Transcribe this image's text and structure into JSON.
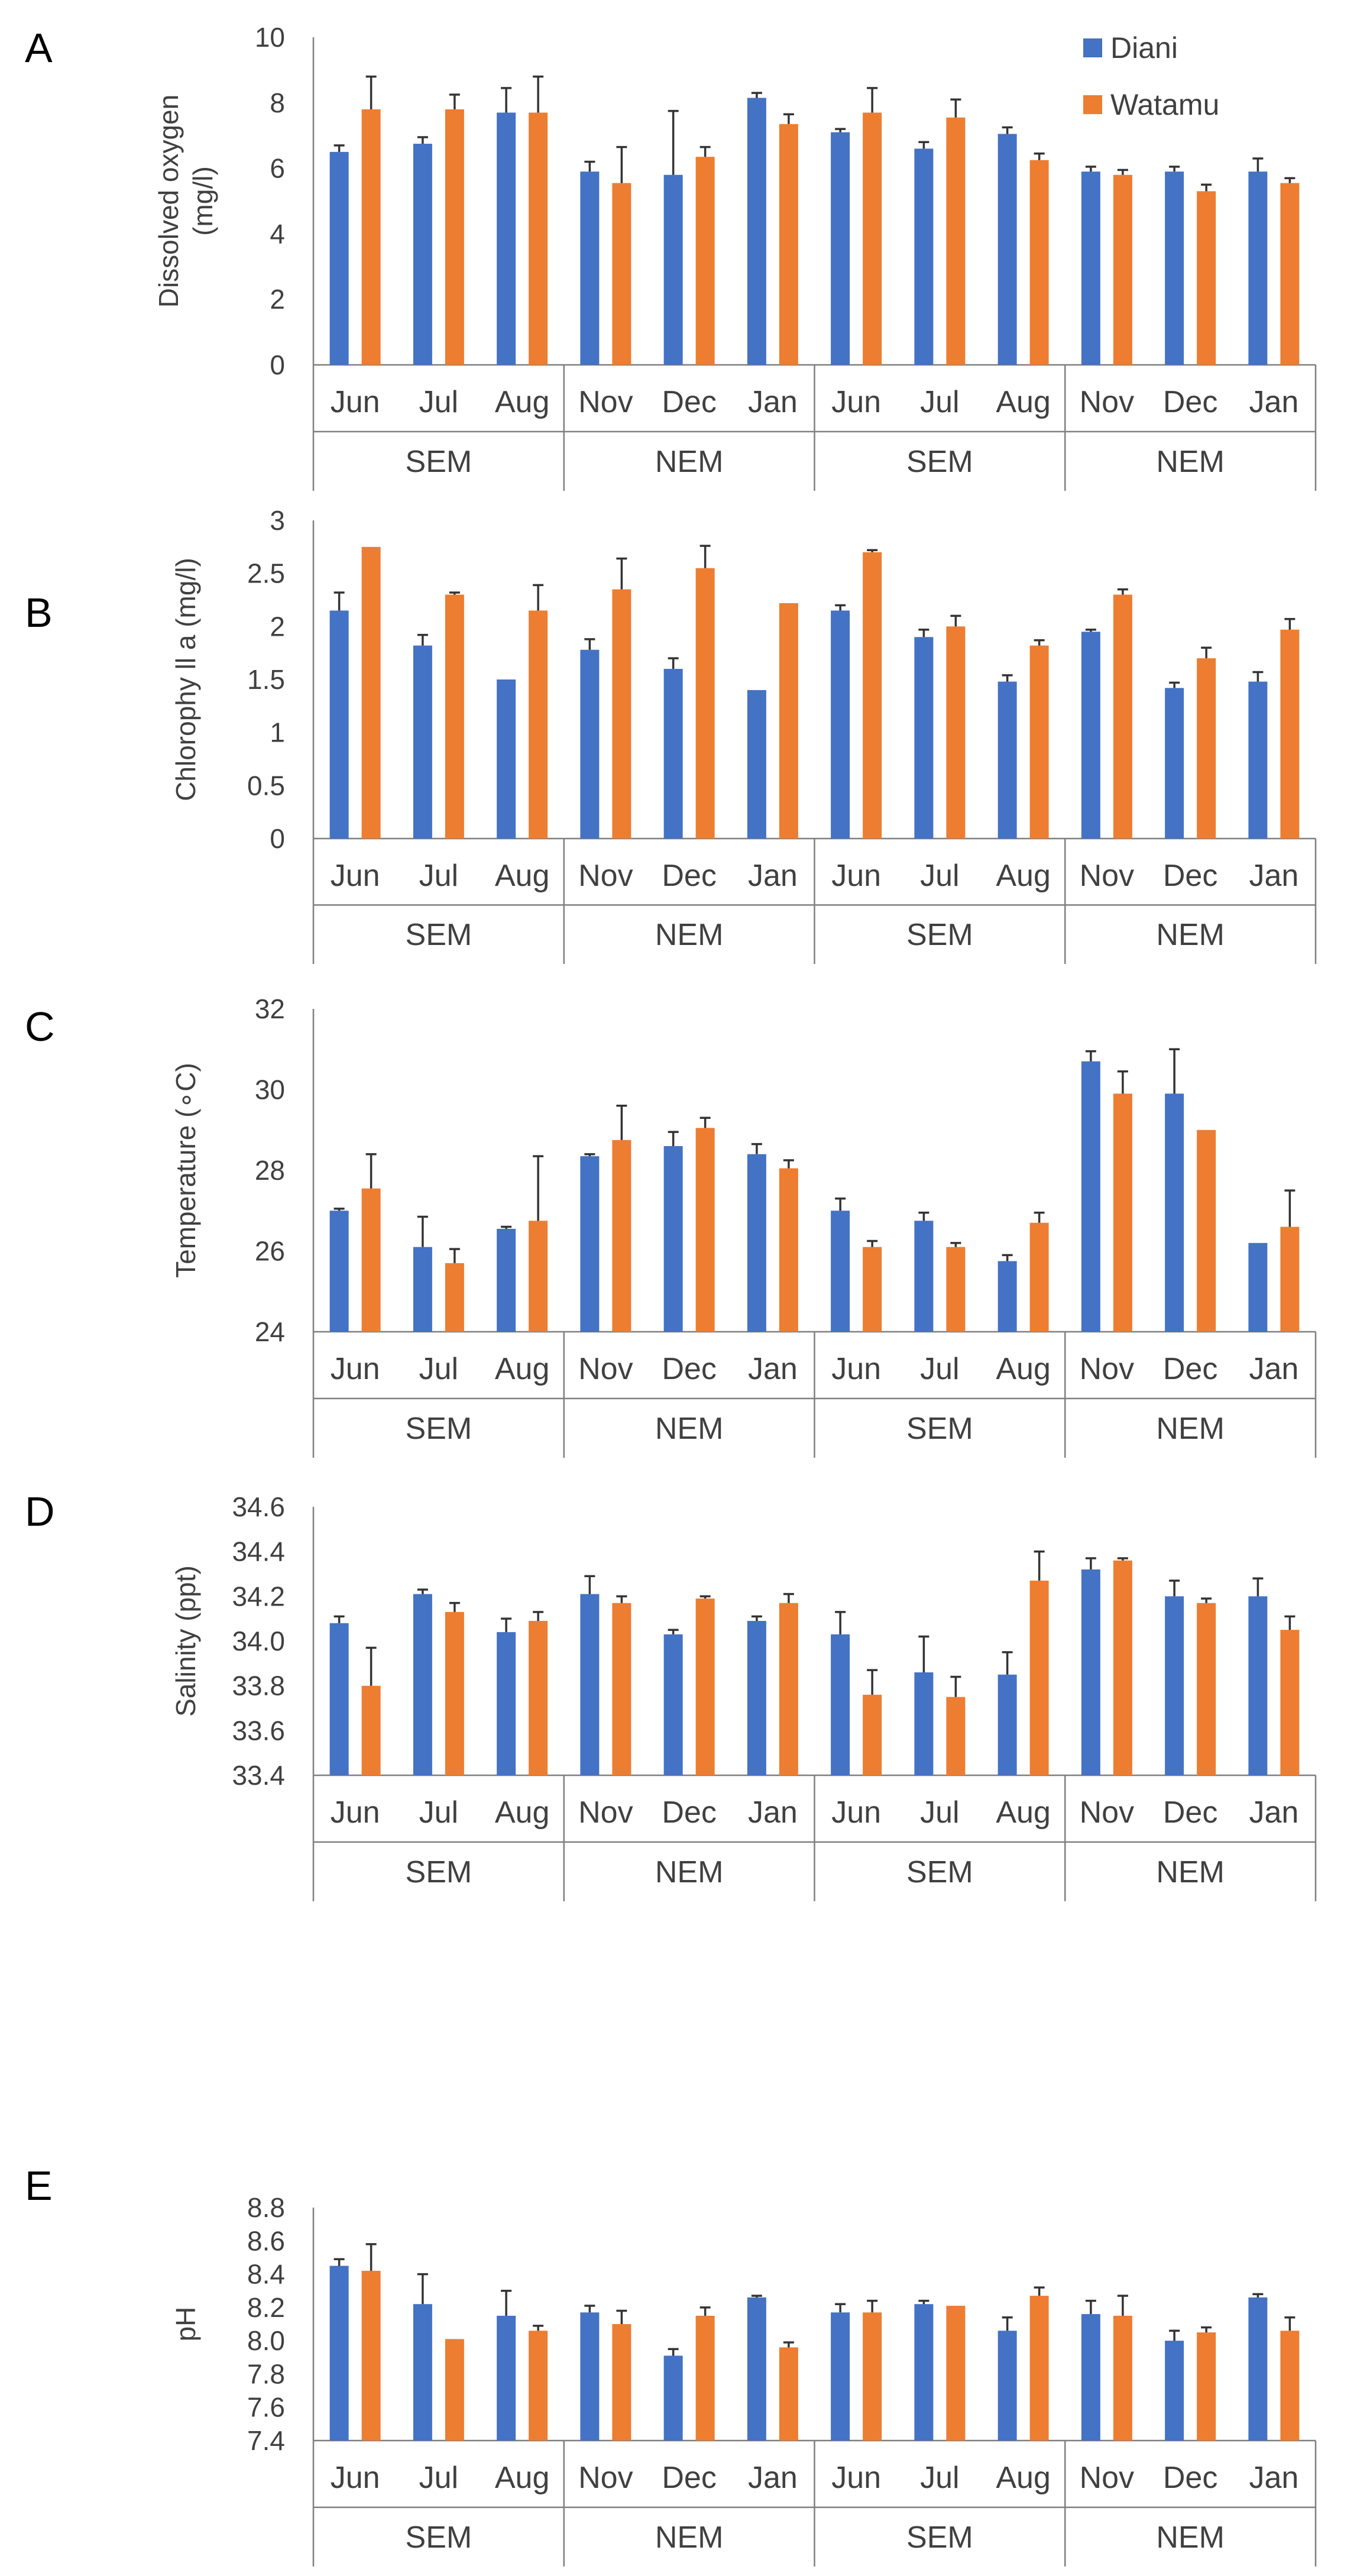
{
  "legend": [
    {
      "label": "Diani",
      "color": "#4472C4"
    },
    {
      "label": "Watamu",
      "color": "#ED7D31"
    }
  ],
  "chart_data": [
    {
      "panel": "A",
      "type": "bar",
      "ylabel_lines": [
        "Dissolved oxygen",
        "(mg/l)"
      ],
      "ylim": [
        0,
        10
      ],
      "yticks": [
        0,
        2,
        4,
        6,
        8,
        10
      ],
      "tick_decimals": 0,
      "categories": [
        "Jun",
        "Jul",
        "Aug",
        "Nov",
        "Dec",
        "Jan",
        "Jun",
        "Jul",
        "Aug",
        "Nov",
        "Dec",
        "Jan"
      ],
      "groups": [
        "SEM",
        "NEM",
        "SEM",
        "NEM"
      ],
      "series": [
        {
          "name": "Diani",
          "values": [
            6.5,
            6.75,
            7.7,
            5.9,
            5.8,
            8.15,
            7.1,
            6.6,
            7.05,
            5.9,
            5.9,
            5.9
          ],
          "errors": [
            0.2,
            0.2,
            0.75,
            0.3,
            1.95,
            0.15,
            0.1,
            0.2,
            0.2,
            0.15,
            0.15,
            0.4
          ]
        },
        {
          "name": "Watamu",
          "values": [
            7.8,
            7.8,
            7.7,
            5.55,
            6.35,
            7.35,
            7.7,
            7.55,
            6.25,
            5.8,
            5.3,
            5.55
          ],
          "errors": [
            1.0,
            0.45,
            1.1,
            1.1,
            0.3,
            0.3,
            0.75,
            0.55,
            0.2,
            0.15,
            0.2,
            0.15
          ]
        }
      ]
    },
    {
      "panel": "B",
      "type": "bar",
      "ylabel_lines": [
        "Chlorophy ll a (mg/l)"
      ],
      "ylim": [
        0,
        3
      ],
      "yticks": [
        0,
        0.5,
        1,
        1.5,
        2,
        2.5,
        3
      ],
      "tick_decimals": -1,
      "categories": [
        "Jun",
        "Jul",
        "Aug",
        "Nov",
        "Dec",
        "Jan",
        "Jun",
        "Jul",
        "Aug",
        "Nov",
        "Dec",
        "Jan"
      ],
      "groups": [
        "SEM",
        "NEM",
        "SEM",
        "NEM"
      ],
      "series": [
        {
          "name": "Diani",
          "values": [
            2.15,
            1.82,
            1.5,
            1.78,
            1.6,
            1.4,
            2.15,
            1.9,
            1.48,
            1.95,
            1.42,
            1.48
          ],
          "errors": [
            0.17,
            0.1,
            0.0,
            0.1,
            0.1,
            0.0,
            0.05,
            0.07,
            0.06,
            0.02,
            0.05,
            0.09
          ]
        },
        {
          "name": "Watamu",
          "values": [
            2.75,
            2.3,
            2.15,
            2.35,
            2.55,
            2.22,
            2.7,
            2.0,
            1.82,
            2.3,
            1.7,
            1.97
          ],
          "errors": [
            0.0,
            0.02,
            0.24,
            0.29,
            0.21,
            0.0,
            0.02,
            0.1,
            0.05,
            0.05,
            0.1,
            0.1
          ]
        }
      ]
    },
    {
      "panel": "C",
      "type": "bar",
      "ylabel_lines": [
        "Temperature (∘C)"
      ],
      "ylim": [
        24,
        32
      ],
      "yticks": [
        24,
        26,
        28,
        30,
        32
      ],
      "tick_decimals": 0,
      "categories": [
        "Jun",
        "Jul",
        "Aug",
        "Nov",
        "Dec",
        "Jan",
        "Jun",
        "Jul",
        "Aug",
        "Nov",
        "Dec",
        "Jan"
      ],
      "groups": [
        "SEM",
        "NEM",
        "SEM",
        "NEM"
      ],
      "series": [
        {
          "name": "Diani",
          "values": [
            27.0,
            26.1,
            26.55,
            28.35,
            28.6,
            28.4,
            27.0,
            26.75,
            25.75,
            30.7,
            29.9,
            26.2
          ],
          "errors": [
            0.05,
            0.75,
            0.05,
            0.05,
            0.35,
            0.25,
            0.3,
            0.2,
            0.15,
            0.25,
            1.1,
            0.0
          ]
        },
        {
          "name": "Watamu",
          "values": [
            27.55,
            25.7,
            26.75,
            28.75,
            29.05,
            28.05,
            26.1,
            26.1,
            26.7,
            29.9,
            29.0,
            26.6
          ],
          "errors": [
            0.85,
            0.35,
            1.6,
            0.85,
            0.25,
            0.2,
            0.15,
            0.1,
            0.25,
            0.55,
            0.0,
            0.9
          ]
        }
      ]
    },
    {
      "panel": "D",
      "type": "bar",
      "ylabel_lines": [
        "Salinity  (ppt)"
      ],
      "ylim": [
        33.4,
        34.6
      ],
      "yticks": [
        33.4,
        33.6,
        33.8,
        34.0,
        34.2,
        34.4,
        34.6
      ],
      "tick_decimals": 1,
      "categories": [
        "Jun",
        "Jul",
        "Aug",
        "Nov",
        "Dec",
        "Jan",
        "Jun",
        "Jul",
        "Aug",
        "Nov",
        "Dec",
        "Jan"
      ],
      "groups": [
        "SEM",
        "NEM",
        "SEM",
        "NEM"
      ],
      "series": [
        {
          "name": "Diani",
          "values": [
            34.08,
            34.21,
            34.04,
            34.21,
            34.03,
            34.09,
            34.03,
            33.86,
            33.85,
            34.32,
            34.2,
            34.2
          ],
          "errors": [
            0.03,
            0.02,
            0.06,
            0.08,
            0.02,
            0.02,
            0.1,
            0.16,
            0.1,
            0.05,
            0.07,
            0.08
          ]
        },
        {
          "name": "Watamu",
          "values": [
            33.8,
            34.13,
            34.09,
            34.17,
            34.19,
            34.17,
            33.76,
            33.75,
            34.27,
            34.36,
            34.17,
            34.05
          ],
          "errors": [
            0.17,
            0.04,
            0.04,
            0.03,
            0.01,
            0.04,
            0.11,
            0.09,
            0.13,
            0.01,
            0.02,
            0.06
          ]
        }
      ]
    },
    {
      "panel": "E",
      "type": "bar",
      "ylabel_lines": [
        "pH"
      ],
      "ylim": [
        7.4,
        8.8
      ],
      "yticks": [
        7.4,
        7.6,
        7.8,
        8.0,
        8.2,
        8.4,
        8.6,
        8.8
      ],
      "tick_decimals": 1,
      "categories": [
        "Jun",
        "Jul",
        "Aug",
        "Nov",
        "Dec",
        "Jan",
        "Jun",
        "Jul",
        "Aug",
        "Nov",
        "Dec",
        "Jan"
      ],
      "groups": [
        "SEM",
        "NEM",
        "SEM",
        "NEM"
      ],
      "series": [
        {
          "name": "Diani",
          "values": [
            8.45,
            8.22,
            8.15,
            8.17,
            7.91,
            8.26,
            8.17,
            8.22,
            8.06,
            8.16,
            8.0,
            8.26
          ],
          "errors": [
            0.04,
            0.18,
            0.15,
            0.04,
            0.04,
            0.01,
            0.05,
            0.02,
            0.08,
            0.08,
            0.06,
            0.02
          ]
        },
        {
          "name": "Watamu",
          "values": [
            8.42,
            8.01,
            8.06,
            8.1,
            8.15,
            7.96,
            8.17,
            8.21,
            8.27,
            8.15,
            8.05,
            8.06
          ],
          "errors": [
            0.16,
            0.0,
            0.03,
            0.08,
            0.05,
            0.03,
            0.07,
            0.0,
            0.05,
            0.12,
            0.03,
            0.08
          ]
        }
      ]
    }
  ]
}
